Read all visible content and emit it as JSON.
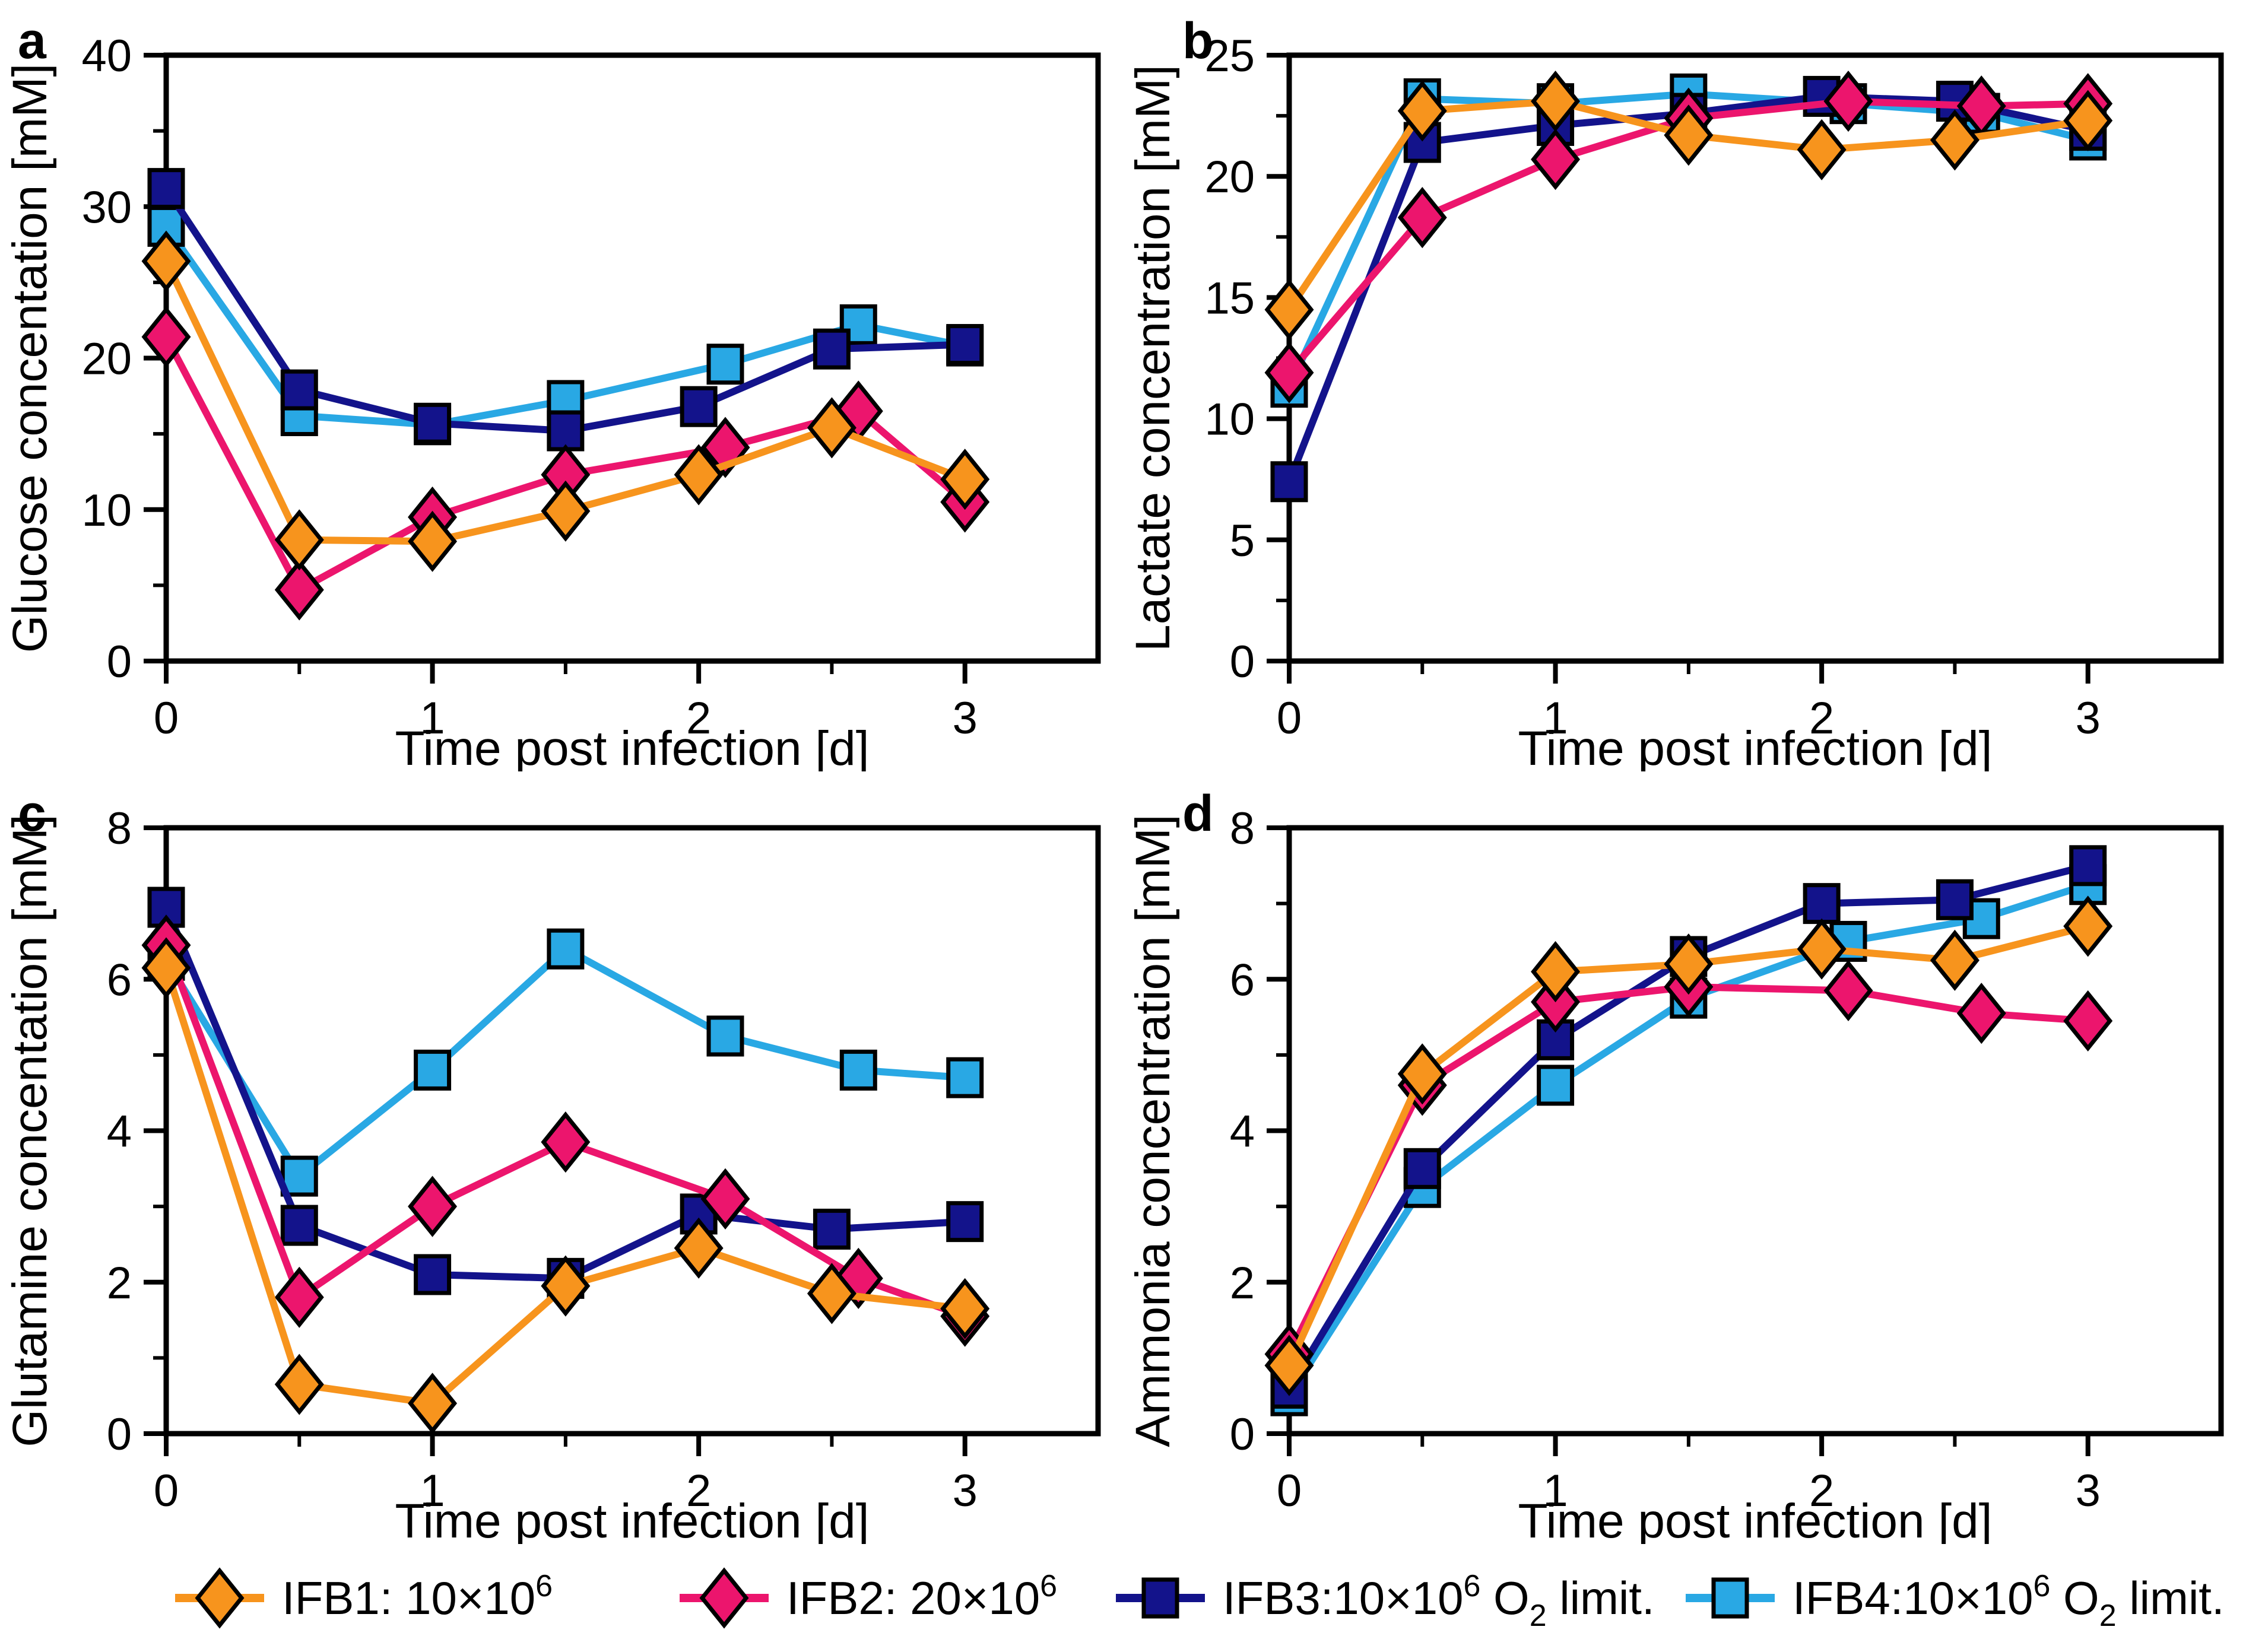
{
  "figure": {
    "background": "#ffffff",
    "xlabel": "Time post infection [d]",
    "panel_letters": [
      "a",
      "b",
      "c",
      "d"
    ]
  },
  "series_styles": {
    "IFB1": {
      "color": "#F7941D",
      "marker": "diamond"
    },
    "IFB2": {
      "color": "#EC156D",
      "marker": "diamond"
    },
    "IFB3": {
      "color": "#13138B",
      "marker": "square"
    },
    "IFB4": {
      "color": "#29A8E4",
      "marker": "square"
    }
  },
  "draw_order": [
    "IFB4",
    "IFB3",
    "IFB2",
    "IFB1"
  ],
  "chart_data": [
    {
      "panel": "a",
      "type": "line",
      "ylabel": "Glucose concentation [mM]",
      "xlabel": "Time post infection [d]",
      "ylim": [
        0,
        40
      ],
      "yticks": [
        0,
        10,
        20,
        30,
        40
      ],
      "yminorticks": [
        5,
        15,
        25,
        35
      ],
      "xlim": [
        0,
        3.5
      ],
      "xticks": [
        0,
        1,
        2,
        3
      ],
      "xminorticks": [
        0.5,
        1.5,
        2.5
      ],
      "grid": false,
      "series": [
        {
          "name": "IFB1",
          "x": [
            0,
            0.5,
            1,
            1.5,
            2,
            2.5,
            3
          ],
          "y": [
            26.4,
            8.0,
            7.9,
            9.9,
            12.3,
            15.4,
            12.0
          ]
        },
        {
          "name": "IFB2",
          "x": [
            0,
            0.5,
            1,
            1.5,
            2.1,
            2.6,
            3
          ],
          "y": [
            21.4,
            4.7,
            9.5,
            12.3,
            14.1,
            16.5,
            10.5
          ]
        },
        {
          "name": "IFB3",
          "x": [
            0,
            0.5,
            1,
            1.5,
            2,
            2.5,
            3
          ],
          "y": [
            31.2,
            17.9,
            15.7,
            15.2,
            16.8,
            20.6,
            20.9
          ]
        },
        {
          "name": "IFB4",
          "x": [
            0,
            0.5,
            1,
            1.5,
            2.1,
            2.6,
            3
          ],
          "y": [
            28.7,
            16.2,
            15.6,
            17.2,
            19.6,
            22.2,
            20.8
          ]
        }
      ]
    },
    {
      "panel": "b",
      "type": "line",
      "ylabel": "Lactate concentration [mM]",
      "xlabel": "Time post infection [d]",
      "ylim": [
        0,
        25
      ],
      "yticks": [
        0,
        5,
        10,
        15,
        20,
        25
      ],
      "yminorticks": [
        2.5,
        7.5,
        12.5,
        17.5,
        22.5
      ],
      "xlim": [
        0,
        3.5
      ],
      "xticks": [
        0,
        1,
        2,
        3
      ],
      "xminorticks": [
        0.5,
        1.5,
        2.5
      ],
      "grid": false,
      "series": [
        {
          "name": "IFB1",
          "x": [
            0,
            0.5,
            1,
            1.5,
            2,
            2.5,
            3
          ],
          "y": [
            14.5,
            22.7,
            23.1,
            21.7,
            21.1,
            21.5,
            22.3
          ]
        },
        {
          "name": "IFB2",
          "x": [
            0,
            0.5,
            1,
            1.5,
            2.1,
            2.6,
            3
          ],
          "y": [
            11.9,
            18.3,
            20.7,
            22.4,
            23.1,
            22.9,
            23.0
          ]
        },
        {
          "name": "IFB3",
          "x": [
            0,
            0.5,
            1,
            1.5,
            2,
            2.5,
            3
          ],
          "y": [
            7.4,
            21.4,
            22.1,
            22.6,
            23.3,
            23.1,
            21.9
          ]
        },
        {
          "name": "IFB4",
          "x": [
            0,
            0.5,
            1,
            1.5,
            2.1,
            2.6,
            3
          ],
          "y": [
            11.3,
            23.2,
            23.0,
            23.4,
            23.0,
            22.6,
            21.5
          ]
        }
      ]
    },
    {
      "panel": "c",
      "type": "line",
      "ylabel": "Glutamine concentation [mM]",
      "xlabel": "Time post infection [d]",
      "ylim": [
        0,
        8
      ],
      "yticks": [
        0,
        2,
        4,
        6,
        8
      ],
      "yminorticks": [
        1,
        3,
        5,
        7
      ],
      "xlim": [
        0,
        3.5
      ],
      "xticks": [
        0,
        1,
        2,
        3
      ],
      "xminorticks": [
        0.5,
        1.5,
        2.5
      ],
      "grid": false,
      "series": [
        {
          "name": "IFB1",
          "x": [
            0,
            0.5,
            1,
            1.5,
            2,
            2.5,
            3
          ],
          "y": [
            6.15,
            0.65,
            0.4,
            1.95,
            2.45,
            1.85,
            1.65
          ]
        },
        {
          "name": "IFB2",
          "x": [
            0,
            0.5,
            1,
            1.5,
            2.1,
            2.6,
            3
          ],
          "y": [
            6.45,
            1.8,
            3.0,
            3.85,
            3.1,
            2.05,
            1.55
          ]
        },
        {
          "name": "IFB3",
          "x": [
            0,
            0.5,
            1,
            1.5,
            2,
            2.5,
            3
          ],
          "y": [
            6.95,
            2.75,
            2.1,
            2.05,
            2.9,
            2.7,
            2.8
          ]
        },
        {
          "name": "IFB4",
          "x": [
            0,
            0.5,
            1,
            1.5,
            2.1,
            2.6,
            3
          ],
          "y": [
            6.25,
            3.4,
            4.8,
            6.4,
            5.25,
            4.8,
            4.7
          ]
        }
      ]
    },
    {
      "panel": "d",
      "type": "line",
      "ylabel": "Ammonia concentration [mM]",
      "xlabel": "Time post infection [d]",
      "ylim": [
        0,
        8
      ],
      "yticks": [
        0,
        2,
        4,
        6,
        8
      ],
      "yminorticks": [
        1,
        3,
        5,
        7
      ],
      "xlim": [
        0,
        3.5
      ],
      "xticks": [
        0,
        1,
        2,
        3
      ],
      "xminorticks": [
        0.5,
        1.5,
        2.5
      ],
      "grid": false,
      "series": [
        {
          "name": "IFB1",
          "x": [
            0,
            0.5,
            1,
            1.5,
            2,
            2.5,
            3
          ],
          "y": [
            0.9,
            4.75,
            6.1,
            6.2,
            6.4,
            6.25,
            6.7
          ]
        },
        {
          "name": "IFB2",
          "x": [
            0,
            0.5,
            1,
            1.5,
            2.1,
            2.6,
            3
          ],
          "y": [
            1.05,
            4.6,
            5.7,
            5.9,
            5.85,
            5.55,
            5.45
          ]
        },
        {
          "name": "IFB3",
          "x": [
            0,
            0.5,
            1,
            1.5,
            2,
            2.5,
            3
          ],
          "y": [
            0.6,
            3.5,
            5.2,
            6.3,
            7.0,
            7.05,
            7.5
          ]
        },
        {
          "name": "IFB4",
          "x": [
            0,
            0.5,
            1,
            1.5,
            2.1,
            2.6,
            3
          ],
          "y": [
            0.5,
            3.25,
            4.6,
            5.75,
            6.5,
            6.8,
            7.25
          ]
        }
      ]
    }
  ],
  "legend": {
    "items": [
      {
        "series": "IFB1",
        "pre": "IFB1: 10×10",
        "sup": "6",
        "mid": "",
        "sub": "",
        "end": ""
      },
      {
        "series": "IFB2",
        "pre": "IFB2: 20×10",
        "sup": "6",
        "mid": "",
        "sub": "",
        "end": ""
      },
      {
        "series": "IFB3",
        "pre": "IFB3:10×10",
        "sup": "6",
        "mid": " O",
        "sub": "2",
        "end": " limit."
      },
      {
        "series": "IFB4",
        "pre": "IFB4:10×10",
        "sup": "6",
        "mid": " O",
        "sub": "2",
        "end": " limit."
      }
    ]
  }
}
